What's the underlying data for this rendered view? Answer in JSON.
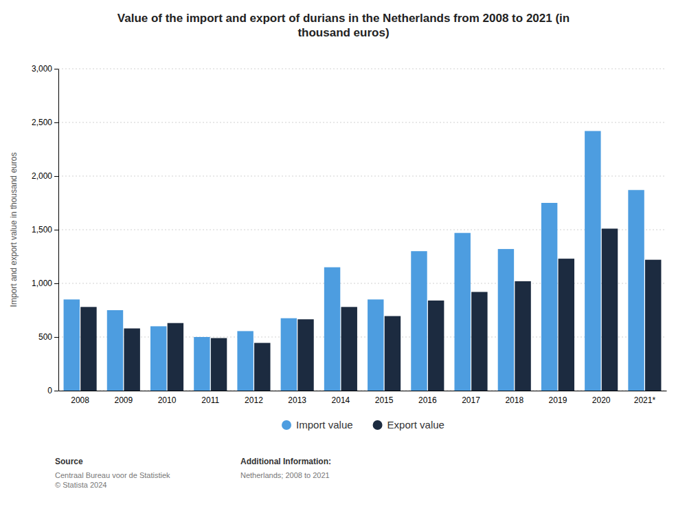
{
  "chart_data": {
    "type": "bar",
    "title": "Value of the import and export of durians in the Netherlands from 2008 to 2021 (in\nthousand euros)",
    "y_label": "Import and export value in thousand euros",
    "categories": [
      "2008",
      "2009",
      "2010",
      "2011",
      "2012",
      "2013",
      "2014",
      "2015",
      "2016",
      "2017",
      "2018",
      "2019",
      "2020",
      "2021*"
    ],
    "series": [
      {
        "name": "Import value",
        "color": "#4d9de0",
        "values": [
          850,
          750,
          600,
          500,
          555,
          675,
          1150,
          850,
          1300,
          1470,
          1320,
          1750,
          2420,
          1870
        ]
      },
      {
        "name": "Export value",
        "color": "#1c2b40",
        "values": [
          780,
          580,
          630,
          490,
          445,
          665,
          780,
          695,
          840,
          920,
          1020,
          1230,
          1510,
          1220
        ]
      }
    ],
    "ylim": [
      0,
      3000
    ],
    "yticks": [
      0,
      500,
      {
        "value": 1000,
        "label": "1,000"
      },
      {
        "value": 1500,
        "label": "1,500"
      },
      {
        "value": 2000,
        "label": "2,000"
      },
      {
        "value": 2500,
        "label": "2,500"
      },
      {
        "value": 3000,
        "label": "3,000"
      }
    ],
    "grid": true,
    "legend": "bottom",
    "annotations": [
      "Source",
      "Centraal Bureau voor de Statistiek\n© Statista 2024",
      "Additional Information:",
      "Netherlands; 2008 to 2021"
    ]
  }
}
